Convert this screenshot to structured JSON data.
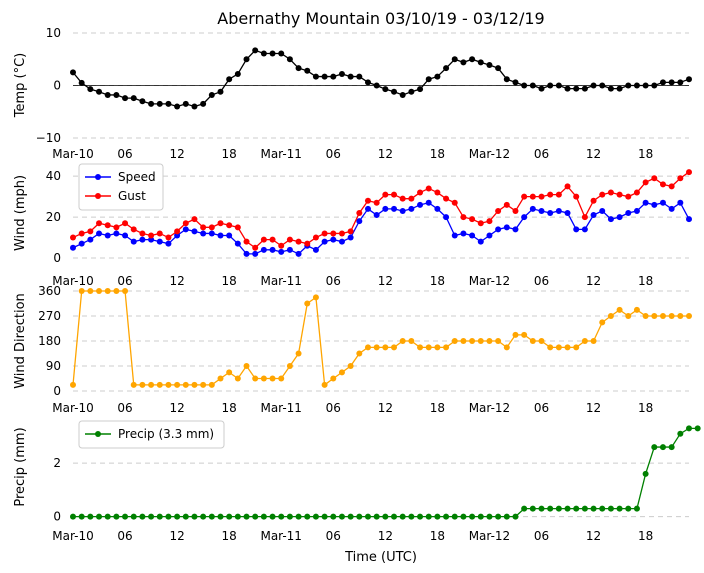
{
  "figure": {
    "title": "Abernathy Mountain 03/10/19 - 03/12/19",
    "xlabel": "Time (UTC)"
  },
  "colors": {
    "temp": "#000000",
    "speed": "#0000ff",
    "gust": "#ff0000",
    "direction": "#ffa500",
    "precip": "#008000",
    "grid": "#cccccc",
    "zero": "#000000"
  },
  "chart_data": [
    {
      "type": "line",
      "title": "Abernathy Mountain 03/10/19 - 03/12/19",
      "ylabel": "Temp ($^\\circ$C)",
      "ylabel_display": "Temp (°C)",
      "x_unit": "hours since Mar-10 00:00 UTC, hourly",
      "x_ticks": [
        "Mar-10",
        "06",
        "12",
        "18",
        "Mar-11",
        "06",
        "12",
        "18",
        "Mar-12",
        "06",
        "12",
        "18"
      ],
      "y_ticks": [
        "−10",
        "0",
        "10"
      ],
      "ylim": [
        -10,
        10
      ],
      "zero_line": true,
      "series": [
        {
          "name": "Temp",
          "color": "#000000",
          "values": [
            2.5,
            0.5,
            -0.7,
            -1.2,
            -1.8,
            -1.8,
            -2.4,
            -2.4,
            -3.0,
            -3.5,
            -3.5,
            -3.5,
            -4.0,
            -3.5,
            -4.0,
            -3.5,
            -1.8,
            -1.2,
            1.2,
            2.2,
            5.0,
            6.7,
            6.1,
            6.1,
            6.1,
            5.0,
            3.3,
            2.8,
            1.7,
            1.7,
            1.7,
            2.2,
            1.7,
            1.7,
            0.6,
            0,
            -0.7,
            -1.2,
            -1.8,
            -1.2,
            -0.7,
            1.2,
            1.7,
            3.3,
            5.0,
            4.4,
            5.0,
            4.4,
            3.9,
            3.3,
            1.2,
            0.6,
            0,
            0,
            -0.6,
            0,
            0,
            -0.6,
            -0.6,
            -0.6,
            0,
            0,
            -0.6,
            -0.6,
            0,
            0,
            0,
            0,
            0.6,
            0.6,
            0.6,
            1.2
          ]
        }
      ]
    },
    {
      "type": "line",
      "ylabel": "Wind (mph)",
      "x_ticks": [
        "Mar-10",
        "06",
        "12",
        "18",
        "Mar-11",
        "06",
        "12",
        "18",
        "Mar-12",
        "06",
        "12",
        "18"
      ],
      "y_ticks": [
        "0",
        "20",
        "40"
      ],
      "ylim": [
        0,
        44
      ],
      "legend": "upper-left",
      "series": [
        {
          "name": "Speed",
          "color": "#0000ff",
          "values": [
            5,
            7,
            9,
            12,
            11,
            12,
            11,
            8,
            9,
            9,
            8,
            7,
            11,
            14,
            13,
            12,
            12,
            11,
            11,
            7,
            2,
            2,
            4,
            4,
            3,
            4,
            2,
            6,
            4,
            8,
            9,
            8,
            10,
            18,
            24,
            21,
            24,
            24,
            23,
            24,
            26,
            27,
            24,
            20,
            11,
            12,
            11,
            8,
            11,
            14,
            15,
            14,
            20,
            24,
            23,
            22,
            23,
            22,
            14,
            14,
            21,
            23,
            19,
            20,
            22,
            23,
            27,
            26,
            27,
            24,
            27,
            19
          ]
        },
        {
          "name": "Gust",
          "color": "#ff0000",
          "values": [
            10,
            12,
            13,
            17,
            16,
            15,
            17,
            14,
            12,
            11,
            12,
            10,
            13,
            17,
            19,
            15,
            15,
            17,
            16,
            15,
            8,
            5,
            9,
            9,
            6,
            9,
            8,
            7,
            10,
            12,
            12,
            12,
            13,
            22,
            28,
            27,
            31,
            31,
            29,
            29,
            32,
            34,
            32,
            29,
            27,
            20,
            19,
            17,
            18,
            23,
            26,
            23,
            30,
            30,
            30,
            31,
            31,
            35,
            30,
            20,
            28,
            31,
            32,
            31,
            30,
            32,
            37,
            39,
            36,
            35,
            39,
            42
          ]
        }
      ],
      "legend_entries": [
        "Speed",
        "Gust"
      ]
    },
    {
      "type": "line",
      "ylabel": "Wind Direction",
      "x_ticks": [
        "Mar-10",
        "06",
        "12",
        "18",
        "Mar-11",
        "06",
        "12",
        "18",
        "Mar-12",
        "06",
        "12",
        "18"
      ],
      "y_ticks": [
        "0",
        "90",
        "180",
        "270",
        "360"
      ],
      "ylim": [
        0,
        360
      ],
      "series": [
        {
          "name": "Direction",
          "color": "#ffa500",
          "values": [
            22,
            360,
            360,
            360,
            360,
            360,
            360,
            22,
            22,
            22,
            22,
            22,
            22,
            22,
            22,
            22,
            22,
            45,
            67,
            45,
            90,
            45,
            45,
            45,
            45,
            90,
            135,
            315,
            337,
            22,
            45,
            67,
            90,
            135,
            157,
            157,
            157,
            157,
            180,
            180,
            157,
            157,
            157,
            157,
            180,
            180,
            180,
            180,
            180,
            180,
            157,
            202,
            202,
            180,
            180,
            157,
            157,
            157,
            157,
            180,
            180,
            247,
            270,
            292,
            270,
            292,
            270,
            270,
            270,
            270,
            270,
            270
          ]
        }
      ]
    },
    {
      "type": "line",
      "ylabel": "Precip (mm)",
      "xlabel": "Time (UTC)",
      "x_ticks": [
        "Mar-10",
        "06",
        "12",
        "18",
        "Mar-11",
        "06",
        "12",
        "18",
        "Mar-12",
        "06",
        "12",
        "18"
      ],
      "y_ticks": [
        "0",
        "2"
      ],
      "ylim": [
        -0.2,
        3.5
      ],
      "legend": "upper-left",
      "series": [
        {
          "name": "Precip (3.3 mm)",
          "color": "#008000",
          "values": [
            0,
            0,
            0,
            0,
            0,
            0,
            0,
            0,
            0,
            0,
            0,
            0,
            0,
            0,
            0,
            0,
            0,
            0,
            0,
            0,
            0,
            0,
            0,
            0,
            0,
            0,
            0,
            0,
            0,
            0,
            0,
            0,
            0,
            0,
            0,
            0,
            0,
            0,
            0,
            0,
            0,
            0,
            0,
            0,
            0,
            0,
            0,
            0,
            0,
            0,
            0,
            0,
            0.3,
            0.3,
            0.3,
            0.3,
            0.3,
            0.3,
            0.3,
            0.3,
            0.3,
            0.3,
            0.3,
            0.3,
            0.3,
            0.3,
            1.6,
            2.6,
            2.6,
            2.6,
            3.1,
            3.3,
            3.3
          ]
        }
      ],
      "legend_entries": [
        "Precip (3.3 mm)"
      ]
    }
  ]
}
